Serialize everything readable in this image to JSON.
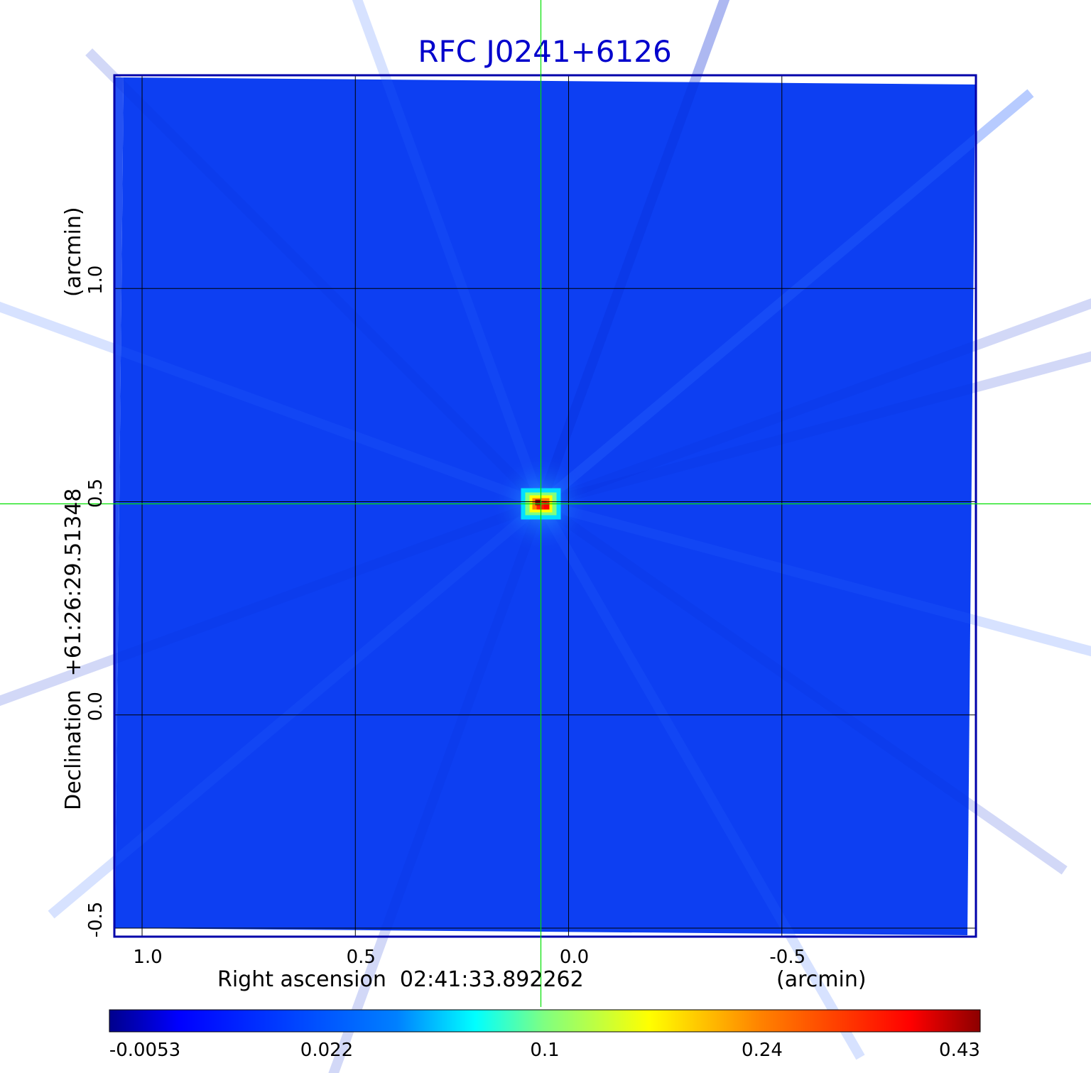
{
  "chart_data": {
    "type": "heatmap",
    "title": "RFC J0241+6126",
    "xlabel": "Right ascension  02:41:33.892262",
    "xunit": "(arcmin)",
    "ylabel": "Declination  +61:26:29.51348",
    "yunit": "(arcmin)",
    "x_ticks": [
      {
        "value": 1.0,
        "label": "1.0"
      },
      {
        "value": 0.5,
        "label": "0.5"
      },
      {
        "value": 0.0,
        "label": "0.0"
      },
      {
        "value": -0.5,
        "label": "-0.5"
      }
    ],
    "y_ticks": [
      {
        "value": 1.0,
        "label": "1.0"
      },
      {
        "value": 0.5,
        "label": "0.5"
      },
      {
        "value": 0.0,
        "label": "0.0"
      },
      {
        "value": -0.5,
        "label": "-0.5"
      }
    ],
    "xlim": [
      1.065,
      -0.955
    ],
    "ylim": [
      -0.52,
      1.5
    ],
    "grid": true,
    "crosshair": {
      "x": 0.065,
      "y": 0.495,
      "color": "#00e000"
    },
    "peak": {
      "x": 0.065,
      "y": 0.495,
      "value": 0.43
    },
    "background_level": 0.0,
    "colormap": [
      "#00008c",
      "#0000ff",
      "#0080ff",
      "#00ffff",
      "#80ff80",
      "#ffff00",
      "#ff8000",
      "#ff0000",
      "#8c0000"
    ],
    "colorbar_ticks": [
      {
        "value": -0.0053,
        "label": "-0.0053"
      },
      {
        "value": 0.022,
        "label": "0.022"
      },
      {
        "value": 0.1,
        "label": "0.1"
      },
      {
        "value": 0.24,
        "label": "0.24"
      },
      {
        "value": 0.43,
        "label": "0.43"
      }
    ],
    "title_color": "#0000cc",
    "frame_color": "#0000aa",
    "background_color": "#0d3ff2"
  }
}
